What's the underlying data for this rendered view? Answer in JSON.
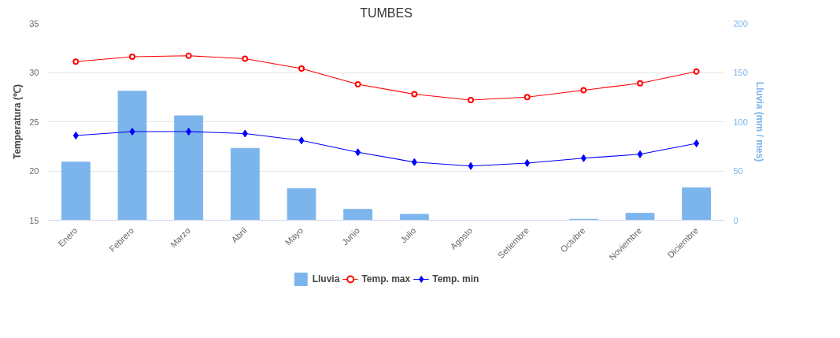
{
  "chart_data": {
    "type": "bar",
    "title": "TUMBES",
    "ylabel": "Temperatura (℃)",
    "y2label": "Lluvia (mm / mes)",
    "categories": [
      "Enero",
      "Febrero",
      "Marzo",
      "Abril",
      "Mayo",
      "Junio",
      "Julio",
      "Agosto",
      "Setiembre",
      "Octubre",
      "Noviembre",
      "Diciembre"
    ],
    "series": [
      {
        "name": "Lluvia",
        "axis": "y2",
        "color": "#7cb5ec",
        "values": [
          59,
          131,
          106,
          73,
          32,
          11,
          6,
          0,
          0,
          1,
          7,
          33
        ]
      },
      {
        "name": "Temp. max",
        "type": "line",
        "marker": "circle",
        "color": "#ff0000",
        "values": [
          31.1,
          31.6,
          31.7,
          31.4,
          30.4,
          28.8,
          27.8,
          27.2,
          27.5,
          28.2,
          28.9,
          30.1
        ]
      },
      {
        "name": "Temp. min",
        "type": "line",
        "marker": "diamond",
        "color": "#0000ff",
        "values": [
          23.6,
          24.0,
          24.0,
          23.8,
          23.1,
          21.9,
          20.9,
          20.5,
          20.8,
          21.3,
          21.7,
          22.8
        ]
      }
    ],
    "ylim": [
      15,
      35
    ],
    "yticks": [
      15,
      20,
      25,
      30,
      35
    ],
    "y2lim": [
      0,
      200
    ],
    "y2ticks": [
      0,
      50,
      100,
      150,
      200
    ],
    "grid": "y",
    "legend": "bottom",
    "line_style": "solid"
  }
}
